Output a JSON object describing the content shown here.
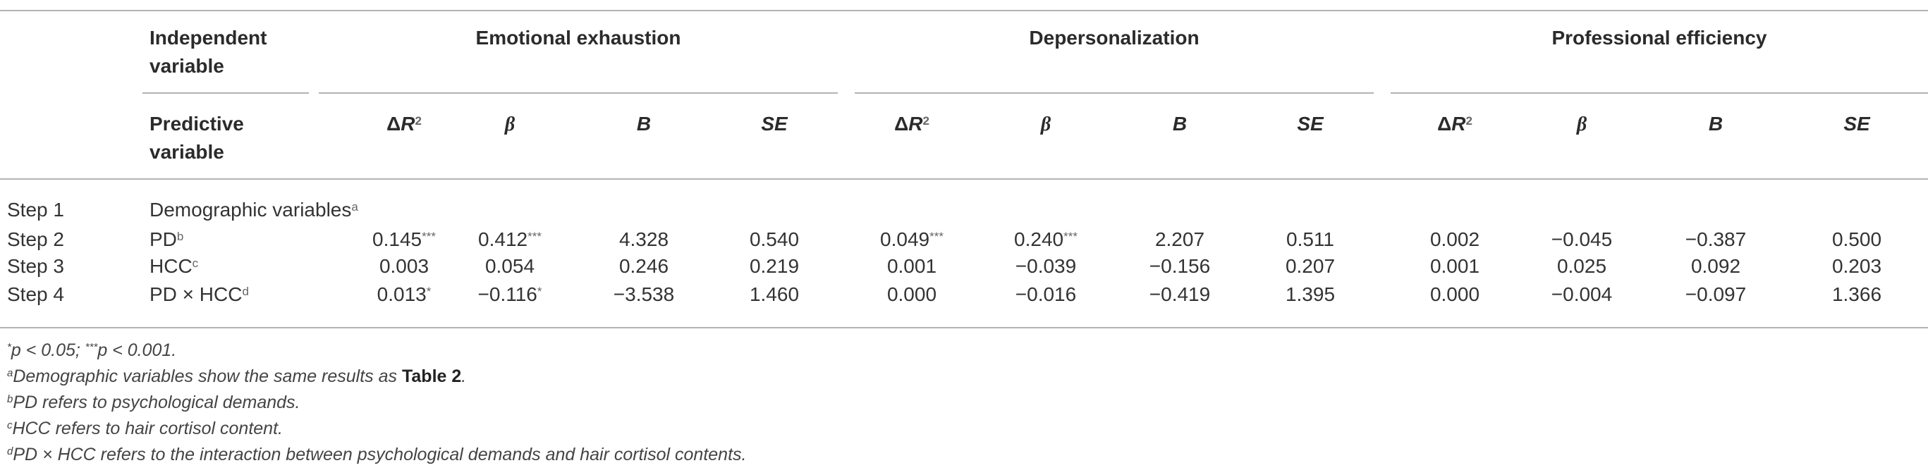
{
  "header": {
    "col1_line1": "Independent",
    "col1_line2": "variable",
    "groups": [
      "Emotional exhaustion",
      "Depersonalization",
      "Professional efficiency"
    ],
    "col2_line1": "Predictive",
    "col2_line2": "variable",
    "delta": "Δ",
    "R": "R",
    "R_sup": "2",
    "beta": "β",
    "B": "B",
    "SE": "SE"
  },
  "steps": [
    {
      "step": "Step 1",
      "var": "Demographic variables",
      "var_sup": "a",
      "cells": []
    },
    {
      "step": "Step 2",
      "var": "PD",
      "var_sup": "b",
      "cells": [
        {
          "v": "0.145",
          "s": "***"
        },
        {
          "v": "0.412",
          "s": "***"
        },
        {
          "v": "4.328",
          "s": ""
        },
        {
          "v": "0.540",
          "s": ""
        },
        {
          "v": "0.049",
          "s": "***"
        },
        {
          "v": "0.240",
          "s": "***"
        },
        {
          "v": "2.207",
          "s": ""
        },
        {
          "v": "0.511",
          "s": ""
        },
        {
          "v": "0.002",
          "s": ""
        },
        {
          "v": "−0.045",
          "s": ""
        },
        {
          "v": "−0.387",
          "s": ""
        },
        {
          "v": "0.500",
          "s": ""
        }
      ]
    },
    {
      "step": "Step 3",
      "var": "HCC",
      "var_sup": "c",
      "cells": [
        {
          "v": "0.003",
          "s": ""
        },
        {
          "v": "0.054",
          "s": ""
        },
        {
          "v": "0.246",
          "s": ""
        },
        {
          "v": "0.219",
          "s": ""
        },
        {
          "v": "0.001",
          "s": ""
        },
        {
          "v": "−0.039",
          "s": ""
        },
        {
          "v": "−0.156",
          "s": ""
        },
        {
          "v": "0.207",
          "s": ""
        },
        {
          "v": "0.001",
          "s": ""
        },
        {
          "v": "0.025",
          "s": ""
        },
        {
          "v": "0.092",
          "s": ""
        },
        {
          "v": "0.203",
          "s": ""
        }
      ]
    },
    {
      "step": "Step 4",
      "var": "PD × HCC",
      "var_sup": "d",
      "cells": [
        {
          "v": "0.013",
          "s": "*"
        },
        {
          "v": "−0.116",
          "s": "*"
        },
        {
          "v": "−3.538",
          "s": ""
        },
        {
          "v": "1.460",
          "s": ""
        },
        {
          "v": "0.000",
          "s": ""
        },
        {
          "v": "−0.016",
          "s": ""
        },
        {
          "v": "−0.419",
          "s": ""
        },
        {
          "v": "1.395",
          "s": ""
        },
        {
          "v": "0.000",
          "s": ""
        },
        {
          "v": "−0.004",
          "s": ""
        },
        {
          "v": "−0.097",
          "s": ""
        },
        {
          "v": "1.366",
          "s": ""
        }
      ]
    }
  ],
  "notes": {
    "n1_sup1": "*",
    "n1_a": "p < 0.05; ",
    "n1_sup2": "***",
    "n1_b": "p < 0.001.",
    "n2_sup": "a",
    "n2_text": "Demographic variables show the same results as ",
    "n2_bold": "Table 2",
    "n2_end": ".",
    "n3_sup": "b",
    "n3_text": "PD refers to psychological demands.",
    "n4_sup": "c",
    "n4_text": "HCC refers to hair cortisol content.",
    "n5_sup": "d",
    "n5_text": "PD × HCC refers to the interaction between psychological demands and hair cortisol contents."
  }
}
